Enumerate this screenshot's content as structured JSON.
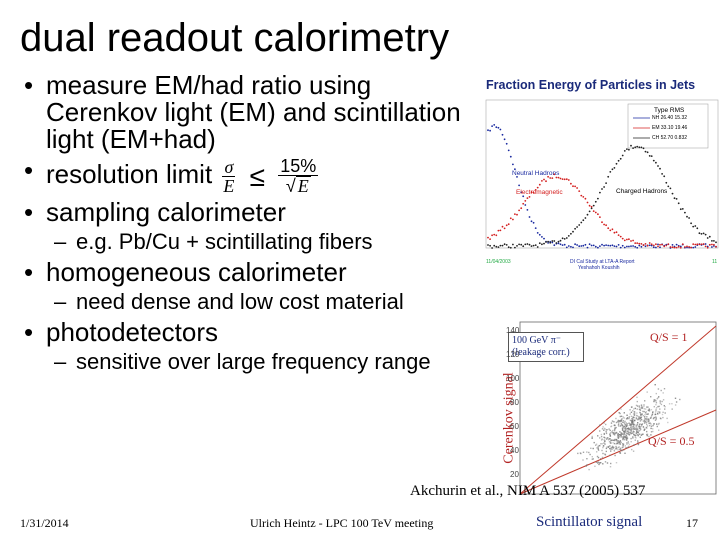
{
  "slide": {
    "title": "dual readout calorimetry",
    "bullets": [
      {
        "text": "measure EM/had ratio using Cerenkov light (EM) and scintillation light (EM+had)"
      },
      {
        "prefix": "resolution limit",
        "num": "σ",
        "den": "E",
        "leq": "≤",
        "rnum": "15%",
        "rden": "E"
      },
      {
        "text": "sampling calorimeter",
        "subs": [
          "e.g. Pb/Cu + scintillating fibers"
        ]
      },
      {
        "text": "homogeneous calorimeter",
        "subs": [
          "need dense and low cost material"
        ]
      },
      {
        "text": "photodetectors",
        "subs": [
          "sensitive over large frequency range"
        ]
      }
    ],
    "citation": "Akchurin et al., NIM A 537 (2005) 537",
    "footer": {
      "date": "1/31/2014",
      "center": "Ulrich Heintz - LPC 100 TeV meeting",
      "page": "17"
    }
  },
  "figure1": {
    "title": "Fraction Energy of Particles in Jets",
    "labels": {
      "neutral": "Neutral Hadrons",
      "em": "Electromagnetic",
      "charged": "Charged Hadrons"
    },
    "legend": {
      "header": "Type RMS",
      "rows": [
        "NH 26.40 15.32",
        "EM 33.10 19.46",
        "CH 52.70 0.832"
      ]
    },
    "footer": {
      "left": "11/04/2003",
      "center": "DI Cal Study at LTA-A Report",
      "center2": "Yeshahoh Koushih",
      "right": "11"
    },
    "colors": {
      "em": "#d42020",
      "charged": "#222222",
      "neutral": "#1a2aa0"
    }
  },
  "figure2": {
    "legend": [
      "100 GeV π⁻",
      "(leakage corr.)"
    ],
    "ylabel": "Cerenkov signal",
    "xlabel": "Scintillator signal",
    "qs1": "Q/S = 1",
    "qs05": "Q/S = 0.5",
    "yticks": [
      "140",
      "120",
      "100",
      "80",
      "60",
      "40",
      "20"
    ],
    "colors": {
      "lines": "#c0392b",
      "points": "#777777"
    }
  }
}
